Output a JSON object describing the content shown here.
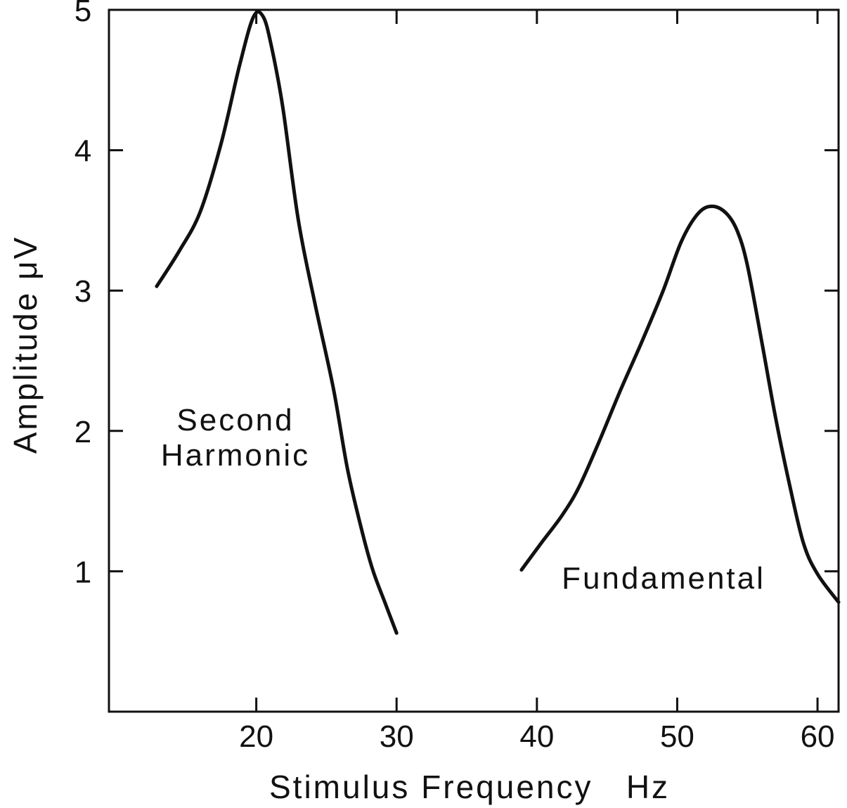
{
  "chart_data": {
    "type": "line",
    "xlabel": "Stimulus Frequency   Hz",
    "ylabel": "Amplitude μV",
    "xlim": [
      9.5,
      61.5
    ],
    "ylim": [
      0,
      5
    ],
    "x_ticks": [
      20,
      30,
      40,
      50,
      60
    ],
    "y_ticks": [
      1,
      2,
      3,
      4,
      5
    ],
    "x_tick_labels": [
      "20",
      "30",
      "40",
      "50",
      "60"
    ],
    "y_tick_labels": [
      "1",
      "2",
      "3",
      "4",
      "5"
    ],
    "grid": false,
    "series": [
      {
        "name": "Second Harmonic",
        "label_lines": [
          "Second",
          "Harmonic"
        ],
        "x": [
          12.9,
          14.5,
          16.0,
          17.5,
          18.8,
          19.8,
          20.5,
          21.1,
          21.9,
          23.0,
          24.2,
          25.5,
          26.5,
          27.5,
          28.3,
          29.2,
          30.0
        ],
        "y": [
          3.03,
          3.28,
          3.56,
          4.05,
          4.6,
          4.95,
          4.95,
          4.73,
          4.3,
          3.5,
          2.9,
          2.3,
          1.73,
          1.3,
          1.01,
          0.77,
          0.56
        ]
      },
      {
        "name": "Fundamental",
        "label_lines": [
          "Fundamental"
        ],
        "x": [
          38.9,
          40.3,
          41.8,
          43.0,
          44.5,
          46.0,
          47.5,
          49.0,
          50.3,
          51.5,
          52.5,
          53.5,
          54.3,
          55.0,
          56.0,
          57.0,
          58.0,
          59.0,
          60.0,
          61.5
        ],
        "y": [
          1.01,
          1.2,
          1.4,
          1.6,
          1.94,
          2.3,
          2.64,
          3.0,
          3.35,
          3.55,
          3.6,
          3.55,
          3.42,
          3.18,
          2.65,
          2.1,
          1.62,
          1.2,
          0.98,
          0.78
        ]
      }
    ]
  }
}
